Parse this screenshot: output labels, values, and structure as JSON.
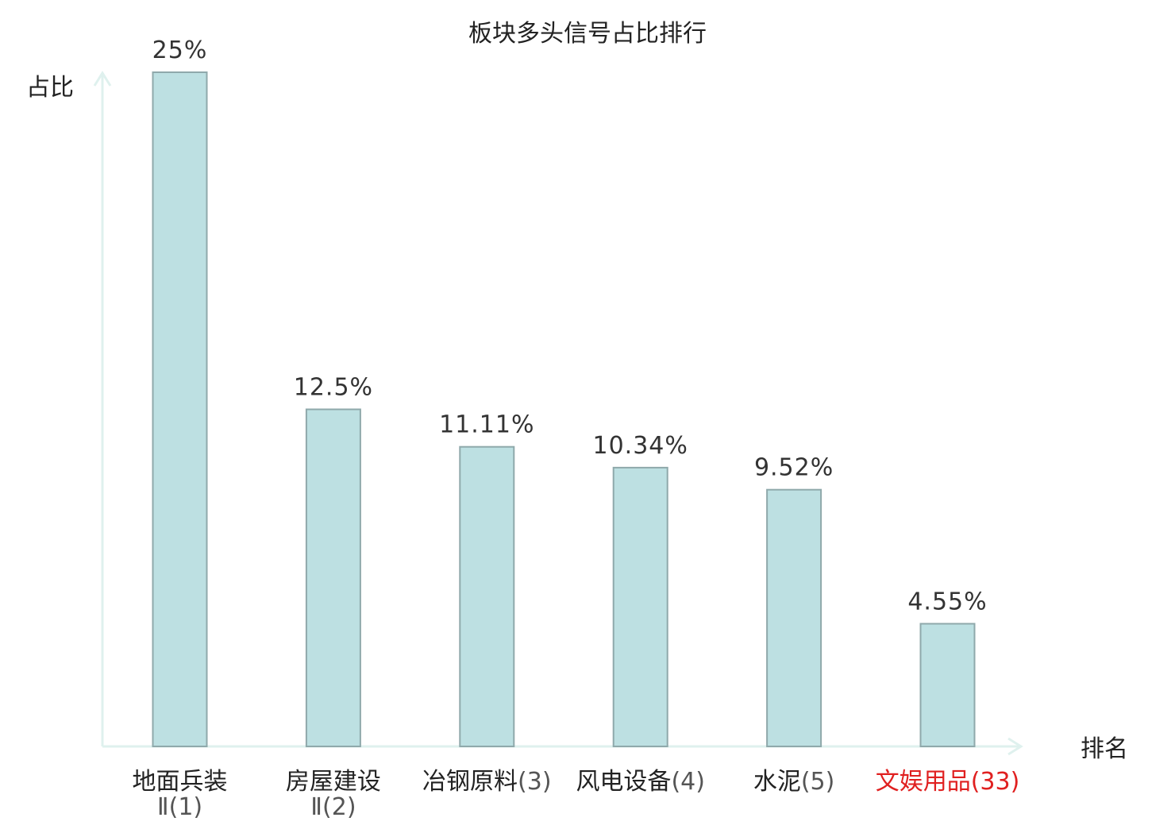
{
  "chart_data": {
    "type": "bar",
    "title": "板块多头信号占比排行",
    "ylabel": "占比",
    "xlabel": "排名",
    "categories": [
      {
        "name": "地面兵装Ⅱ",
        "rank": "(1)",
        "highlight": false
      },
      {
        "name": "房屋建设Ⅱ",
        "rank": "(2)",
        "highlight": false
      },
      {
        "name": "冶钢原料",
        "rank": "(3)",
        "highlight": false
      },
      {
        "name": "风电设备",
        "rank": "(4)",
        "highlight": false
      },
      {
        "name": "水泥",
        "rank": "(5)",
        "highlight": false
      },
      {
        "name": "文娱用品",
        "rank": "(33)",
        "highlight": true
      }
    ],
    "values": [
      25,
      12.5,
      11.11,
      10.34,
      9.52,
      4.55
    ],
    "value_labels": [
      "25%",
      "12.5%",
      "11.11%",
      "10.34%",
      "9.52%",
      "4.55%"
    ],
    "ylim": [
      0,
      25
    ],
    "grid": false,
    "colors": {
      "bar_fill": "#bde0e2",
      "bar_stroke": "#8fa9ab",
      "axis": "#dff1ee",
      "text": "#222222",
      "value_text": "#333333",
      "rank_text": "#555555",
      "highlight": "#e02020"
    }
  }
}
